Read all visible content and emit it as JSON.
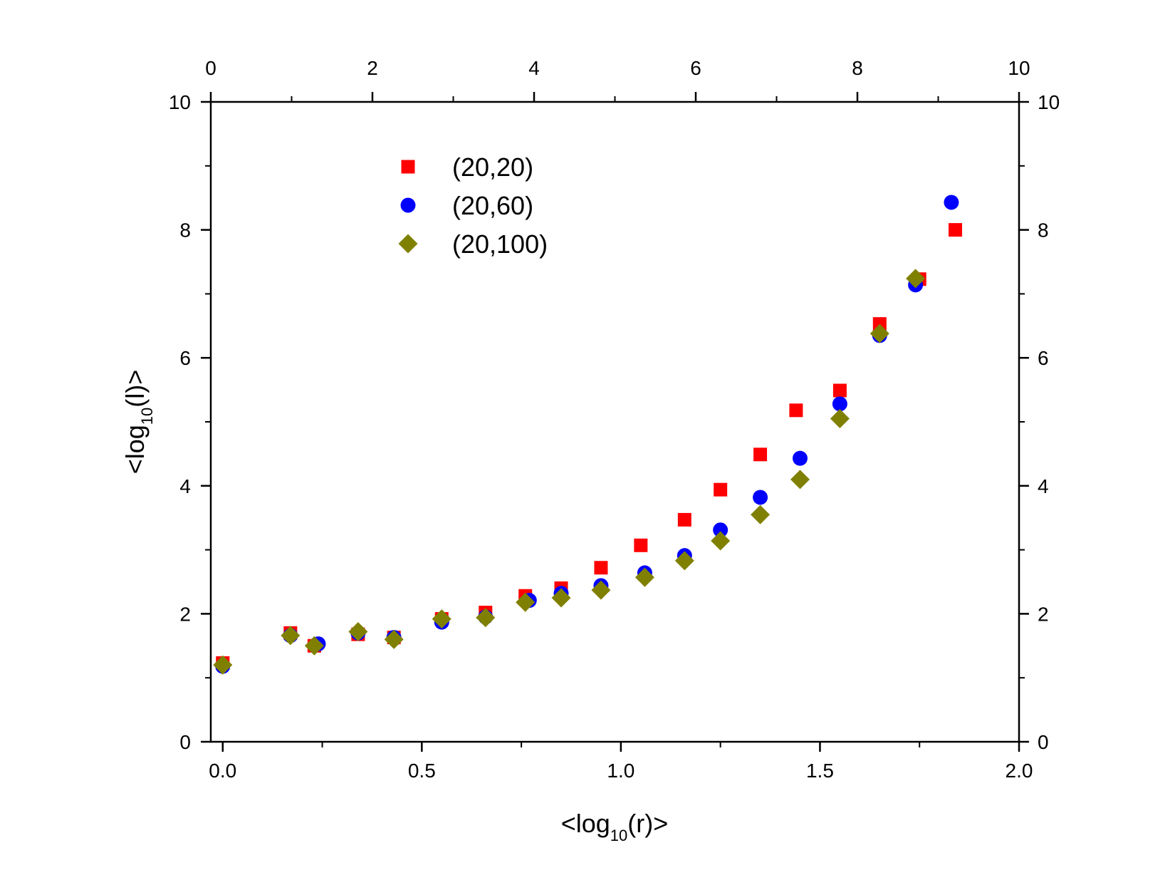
{
  "chart_data": {
    "type": "scatter",
    "title": "",
    "xlabel": "<log10(r)>",
    "xlabel_parts": {
      "prefix": "<log",
      "sub": "10",
      "suffix": "(r)>"
    },
    "ylabel": "<log10(l)>",
    "ylabel_parts": {
      "prefix": "<log",
      "sub": "10",
      "suffix": "(l)>"
    },
    "xlim": [
      -0.03,
      2.0
    ],
    "ylim": [
      0,
      10
    ],
    "x_ticks": [
      0.0,
      0.5,
      1.0,
      1.5,
      2.0
    ],
    "x_tick_labels": [
      "0.0",
      "0.5",
      "1.0",
      "1.5",
      "2.0"
    ],
    "y_ticks": [
      0,
      2,
      4,
      6,
      8,
      10
    ],
    "y_tick_labels": [
      "0",
      "2",
      "4",
      "6",
      "8",
      "10"
    ],
    "top_axis": {
      "lim": [
        0,
        10
      ],
      "ticks": [
        0,
        2,
        4,
        6,
        8,
        10
      ],
      "tick_labels": [
        "0",
        "2",
        "4",
        "6",
        "8",
        "10"
      ]
    },
    "right_axis": {
      "lim": [
        0,
        10
      ],
      "ticks": [
        0,
        2,
        4,
        6,
        8,
        10
      ],
      "tick_labels": [
        "0",
        "2",
        "4",
        "6",
        "8",
        "10"
      ]
    },
    "grid": false,
    "legend_position": "top-left",
    "series": [
      {
        "name": "(20,20)",
        "marker": "square",
        "color": "#ff0000",
        "x": [
          0.0,
          0.17,
          0.23,
          0.34,
          0.43,
          0.55,
          0.66,
          0.76,
          0.85,
          0.95,
          1.05,
          1.16,
          1.25,
          1.35,
          1.44,
          1.55,
          1.65,
          1.75,
          1.84
        ],
        "y": [
          1.23,
          1.7,
          1.5,
          1.68,
          1.63,
          1.92,
          2.02,
          2.28,
          2.4,
          2.72,
          3.07,
          3.47,
          3.94,
          4.49,
          5.18,
          5.49,
          6.53,
          7.23,
          8.0
        ]
      },
      {
        "name": "(20,60)",
        "marker": "circle",
        "color": "#0000ff",
        "x": [
          0.0,
          0.17,
          0.24,
          0.34,
          0.43,
          0.55,
          0.66,
          0.77,
          0.85,
          0.95,
          1.06,
          1.16,
          1.25,
          1.35,
          1.45,
          1.55,
          1.65,
          1.74,
          1.83
        ],
        "y": [
          1.18,
          1.66,
          1.53,
          1.7,
          1.63,
          1.87,
          1.95,
          2.21,
          2.32,
          2.44,
          2.64,
          2.91,
          3.31,
          3.82,
          4.43,
          5.28,
          6.35,
          7.14,
          8.43
        ]
      },
      {
        "name": "(20,100)",
        "marker": "diamond",
        "color": "#808000",
        "x": [
          0.0,
          0.17,
          0.23,
          0.34,
          0.43,
          0.55,
          0.66,
          0.76,
          0.85,
          0.95,
          1.06,
          1.16,
          1.25,
          1.35,
          1.45,
          1.55,
          1.65,
          1.74
        ],
        "y": [
          1.2,
          1.66,
          1.5,
          1.72,
          1.6,
          1.92,
          1.94,
          2.18,
          2.25,
          2.37,
          2.57,
          2.83,
          3.14,
          3.55,
          4.1,
          5.05,
          6.38,
          7.24
        ]
      }
    ]
  }
}
